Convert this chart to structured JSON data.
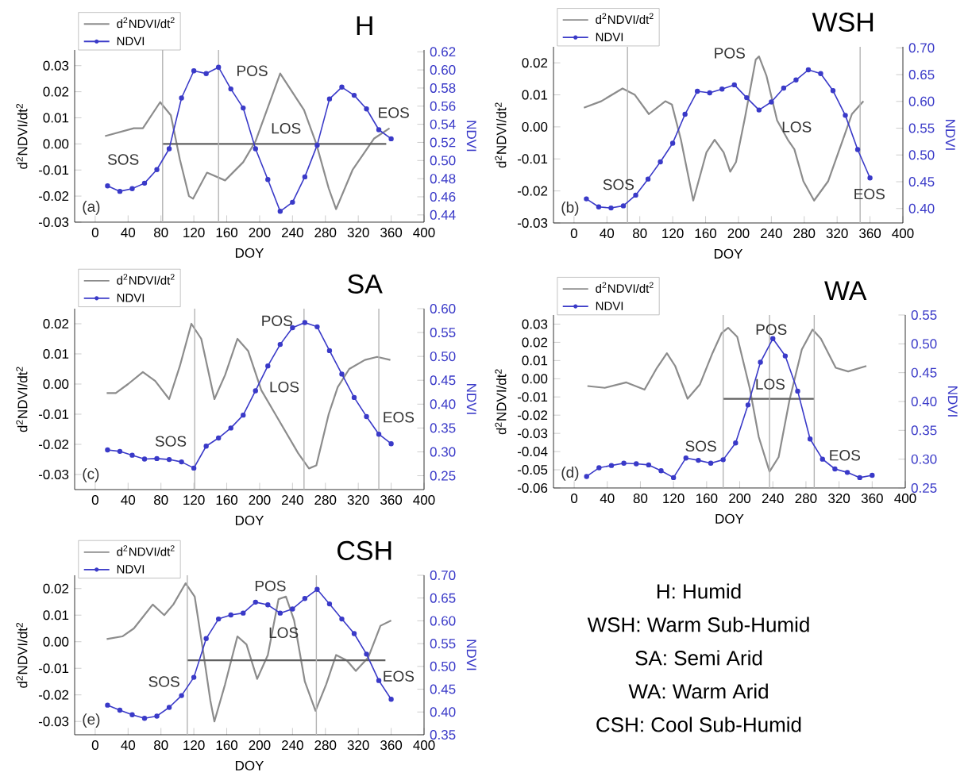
{
  "chart_data": [
    {
      "type": "line",
      "title": "H",
      "xlabel": "DOY",
      "ylabel": "d$^{2}$NDVI/dt$^{2}$",
      "y2label": "NDVI",
      "legend": "top left",
      "xlim": [
        -25,
        400
      ],
      "xticks": [
        0,
        40,
        80,
        120,
        160,
        200,
        240,
        280,
        320,
        360,
        400
      ],
      "ylim": [
        -0.03,
        0.036
      ],
      "yticks": [
        {
          "value": -0.03,
          "label": "-0.03"
        },
        {
          "value": -0.02,
          "label": "-0.02"
        },
        {
          "value": -0.01,
          "label": "-0.01"
        },
        {
          "value": 0,
          "label": "0.00"
        },
        {
          "value": 0.01,
          "label": "0.01"
        },
        {
          "value": 0.02,
          "label": "0.02"
        },
        {
          "value": 0.03,
          "label": "0.03"
        }
      ],
      "y2lim": [
        0.432,
        0.622
      ],
      "y2ticks": [
        {
          "value": 0.44,
          "label": "0.44"
        },
        {
          "value": 0.46,
          "label": "0.46"
        },
        {
          "value": 0.48,
          "label": "0.48"
        },
        {
          "value": 0.5,
          "label": "0.50"
        },
        {
          "value": 0.52,
          "label": "0.52"
        },
        {
          "value": 0.54,
          "label": "0.54"
        },
        {
          "value": 0.56,
          "label": "0.56"
        },
        {
          "value": 0.58,
          "label": "0.58"
        },
        {
          "value": 0.6,
          "label": "0.60"
        },
        {
          "value": 0.62,
          "label": "0.62"
        }
      ],
      "annotations": [
        "(a)",
        "SOS",
        "POS",
        "LOS",
        "EOS"
      ],
      "ref_lines": [
        {
          "axis": "x",
          "value": 82,
          "color": "#b4b4b4"
        },
        {
          "axis": "x",
          "value": 150,
          "color": "#b4b4b4"
        }
      ],
      "series": [
        {
          "name": "d$^{2}$NDVI/dt$^{2}$",
          "color": "#8c8c8c",
          "marker": "none",
          "x": [
            12,
            47,
            58,
            79,
            92,
            103,
            114,
            119,
            136,
            158,
            180,
            195,
            225,
            254,
            269,
            284,
            293,
            313,
            339,
            358
          ],
          "values": [
            0.003,
            0.006,
            0.006,
            0.016,
            0.011,
            -0.006,
            -0.02,
            -0.021,
            -0.011,
            -0.014,
            -0.007,
            0.001,
            0.027,
            0.013,
            0.0,
            -0.017,
            -0.025,
            -0.01,
            0.002,
            0.006
          ]
        },
        {
          "name": "NDVI",
          "color": "#3a3ac8",
          "marker": "circle",
          "axis": "y2",
          "x": [
            15,
            30,
            45,
            60,
            75,
            90,
            105,
            120,
            135,
            150,
            165,
            180,
            195,
            210,
            225,
            240,
            255,
            270,
            285,
            300,
            315,
            330,
            345,
            360
          ],
          "values": [
            0.472,
            0.466,
            0.469,
            0.475,
            0.49,
            0.513,
            0.569,
            0.599,
            0.596,
            0.603,
            0.579,
            0.558,
            0.513,
            0.479,
            0.444,
            0.454,
            0.482,
            0.517,
            0.568,
            0.581,
            0.572,
            0.557,
            0.534,
            0.524
          ]
        },
        {
          "color": "#606060",
          "marker": "none",
          "x": [
            82,
            354
          ],
          "values": [
            0,
            0
          ]
        }
      ]
    },
    {
      "type": "line",
      "title": "WSH",
      "xlabel": "DOY",
      "ylabel": "d$^{2}$NDVI/dt$^{2}$",
      "y2label": "NDVI",
      "legend": "top left",
      "xlim": [
        -25,
        400
      ],
      "xticks": [
        0,
        40,
        80,
        120,
        160,
        200,
        240,
        280,
        320,
        360,
        400
      ],
      "ylim": [
        -0.03,
        0.025
      ],
      "yticks": [
        {
          "value": -0.03,
          "label": "-0.03"
        },
        {
          "value": -0.02,
          "label": "-0.02"
        },
        {
          "value": -0.01,
          "label": "-0.01"
        },
        {
          "value": 0,
          "label": "0.00"
        },
        {
          "value": 0.01,
          "label": "0.01"
        },
        {
          "value": 0.02,
          "label": "0.02"
        }
      ],
      "y2lim": [
        0.373,
        0.702
      ],
      "y2ticks": [
        {
          "value": 0.4,
          "label": "0.40"
        },
        {
          "value": 0.45,
          "label": "0.45"
        },
        {
          "value": 0.5,
          "label": "0.50"
        },
        {
          "value": 0.55,
          "label": "0.55"
        },
        {
          "value": 0.6,
          "label": "0.60"
        },
        {
          "value": 0.65,
          "label": "0.65"
        },
        {
          "value": 0.7,
          "label": "0.70"
        }
      ],
      "annotations": [
        "(b)",
        "SOS",
        "POS",
        "LOS",
        "EOS"
      ],
      "ref_lines": [
        {
          "axis": "x",
          "value": 65,
          "color": "#b4b4b4"
        },
        {
          "axis": "x",
          "value": 348,
          "color": "#b4b4b4"
        }
      ],
      "series": [
        {
          "name": "d$^{2}$NDVI/dt$^{2}$",
          "color": "#8c8c8c",
          "marker": "none",
          "x": [
            12,
            33,
            59,
            74,
            91,
            111,
            119,
            130,
            145,
            161,
            171,
            182,
            190,
            197,
            208,
            221,
            225,
            234,
            247,
            260,
            268,
            279,
            292,
            309,
            327,
            338,
            352
          ],
          "values": [
            0.006,
            0.008,
            0.012,
            0.01,
            0.004,
            0.008,
            0.007,
            -0.004,
            -0.023,
            -0.008,
            -0.004,
            -0.008,
            -0.014,
            -0.011,
            0.003,
            0.021,
            0.022,
            0.016,
            0.002,
            -0.004,
            -0.007,
            -0.017,
            -0.023,
            -0.017,
            -0.004,
            0.004,
            0.008
          ]
        },
        {
          "name": "NDVI",
          "color": "#3a3ac8",
          "marker": "circle",
          "axis": "y2",
          "x": [
            15,
            30,
            45,
            60,
            75,
            90,
            105,
            120,
            135,
            150,
            165,
            180,
            195,
            210,
            225,
            240,
            255,
            270,
            285,
            300,
            315,
            330,
            345,
            360
          ],
          "values": [
            0.418,
            0.403,
            0.401,
            0.405,
            0.425,
            0.455,
            0.487,
            0.522,
            0.576,
            0.619,
            0.616,
            0.623,
            0.631,
            0.607,
            0.584,
            0.599,
            0.625,
            0.64,
            0.659,
            0.652,
            0.62,
            0.574,
            0.51,
            0.457
          ]
        }
      ]
    },
    {
      "type": "line",
      "title": "SA",
      "xlabel": "DOY",
      "ylabel": "d$^{2}$NDVI/dt$^{2}$",
      "y2label": "NDVI",
      "legend": "top left",
      "xlim": [
        -25,
        400
      ],
      "xticks": [
        0,
        40,
        80,
        120,
        160,
        200,
        240,
        280,
        320,
        360,
        400
      ],
      "ylim": [
        -0.035,
        0.025
      ],
      "yticks": [
        {
          "value": -0.03,
          "label": "-0.03"
        },
        {
          "value": -0.02,
          "label": "-0.02"
        },
        {
          "value": -0.01,
          "label": "-0.01"
        },
        {
          "value": 0,
          "label": "0.00"
        },
        {
          "value": 0.01,
          "label": "0.01"
        },
        {
          "value": 0.02,
          "label": "0.02"
        }
      ],
      "y2lim": [
        0.221,
        0.6
      ],
      "y2ticks": [
        {
          "value": 0.25,
          "label": "0.25"
        },
        {
          "value": 0.3,
          "label": "0.30"
        },
        {
          "value": 0.35,
          "label": "0.35"
        },
        {
          "value": 0.4,
          "label": "0.40"
        },
        {
          "value": 0.45,
          "label": "0.45"
        },
        {
          "value": 0.5,
          "label": "0.50"
        },
        {
          "value": 0.55,
          "label": "0.55"
        },
        {
          "value": 0.6,
          "label": "0.60"
        }
      ],
      "annotations": [
        "(c)",
        "SOS",
        "POS",
        "LOS",
        "EOS"
      ],
      "ref_lines": [
        {
          "axis": "x",
          "value": 121,
          "color": "#b4b4b4"
        },
        {
          "axis": "x",
          "value": 254,
          "color": "#b4b4b4"
        },
        {
          "axis": "x",
          "value": 345,
          "color": "#b4b4b4"
        }
      ],
      "series": [
        {
          "name": "d$^{2}$NDVI/dt$^{2}$",
          "color": "#8c8c8c",
          "marker": "none",
          "x": [
            14,
            25,
            40,
            58,
            73,
            90,
            103,
            117,
            129,
            145,
            158,
            173,
            186,
            202,
            217,
            232,
            247,
            260,
            269,
            284,
            295,
            309,
            328,
            343,
            359
          ],
          "values": [
            -0.003,
            -0.003,
            0.0,
            0.004,
            0.001,
            -0.005,
            0.006,
            0.02,
            0.015,
            -0.005,
            0.003,
            0.015,
            0.011,
            -0.002,
            -0.009,
            -0.016,
            -0.023,
            -0.028,
            -0.027,
            -0.01,
            -0.001,
            0.005,
            0.008,
            0.009,
            0.008
          ]
        },
        {
          "name": "NDVI",
          "color": "#3a3ac8",
          "marker": "circle",
          "axis": "y2",
          "x": [
            15,
            30,
            45,
            60,
            75,
            90,
            105,
            120,
            135,
            150,
            165,
            180,
            195,
            210,
            225,
            240,
            255,
            270,
            285,
            300,
            315,
            330,
            345,
            360
          ],
          "values": [
            0.304,
            0.301,
            0.293,
            0.285,
            0.286,
            0.284,
            0.279,
            0.266,
            0.312,
            0.329,
            0.35,
            0.377,
            0.428,
            0.48,
            0.525,
            0.56,
            0.571,
            0.562,
            0.512,
            0.463,
            0.414,
            0.374,
            0.337,
            0.317
          ]
        }
      ]
    },
    {
      "type": "line",
      "title": "WA",
      "xlabel": "DOY",
      "ylabel": "d$^{2}$NDVI/dt$^{2}$",
      "y2label": "NDVI",
      "legend": "top left",
      "xlim": [
        -25,
        400
      ],
      "xticks": [
        0,
        40,
        80,
        120,
        160,
        200,
        240,
        280,
        320,
        360,
        400
      ],
      "ylim": [
        -0.06,
        0.035
      ],
      "yticks": [
        {
          "value": -0.06,
          "label": "-0.06"
        },
        {
          "value": -0.05,
          "label": "-0.05"
        },
        {
          "value": -0.04,
          "label": "-0.04"
        },
        {
          "value": -0.03,
          "label": "-0.03"
        },
        {
          "value": -0.02,
          "label": "-0.02"
        },
        {
          "value": -0.01,
          "label": "-0.01"
        },
        {
          "value": 0,
          "label": "0.00"
        },
        {
          "value": 0.01,
          "label": "0.01"
        },
        {
          "value": 0.02,
          "label": "0.02"
        },
        {
          "value": 0.03,
          "label": "0.03"
        }
      ],
      "y2lim": [
        0.25,
        0.55
      ],
      "y2ticks": [
        {
          "value": 0.25,
          "label": "0.25"
        },
        {
          "value": 0.3,
          "label": "0.30"
        },
        {
          "value": 0.35,
          "label": "0.35"
        },
        {
          "value": 0.4,
          "label": "0.40"
        },
        {
          "value": 0.45,
          "label": "0.45"
        },
        {
          "value": 0.5,
          "label": "0.50"
        },
        {
          "value": 0.55,
          "label": "0.55"
        }
      ],
      "annotations": [
        "(d)",
        "SOS",
        "POS",
        "LOS",
        "EOS"
      ],
      "ref_lines": [
        {
          "axis": "x",
          "value": 180,
          "color": "#b4b4b4"
        },
        {
          "axis": "x",
          "value": 236,
          "color": "#b4b4b4"
        },
        {
          "axis": "x",
          "value": 290,
          "color": "#b4b4b4"
        }
      ],
      "series": [
        {
          "name": "d$^{2}$NDVI/dt$^{2}$",
          "color": "#8c8c8c",
          "marker": "none",
          "x": [
            16,
            37,
            63,
            85,
            100,
            112,
            122,
            137,
            152,
            167,
            178,
            186,
            197,
            212,
            223,
            236,
            247,
            260,
            275,
            288,
            298,
            316,
            331,
            353
          ],
          "values": [
            -0.004,
            -0.005,
            -0.002,
            -0.006,
            0.006,
            0.014,
            0.007,
            -0.011,
            -0.003,
            0.014,
            0.025,
            0.028,
            0.023,
            -0.005,
            -0.032,
            -0.051,
            -0.043,
            -0.012,
            0.016,
            0.027,
            0.022,
            0.006,
            0.004,
            0.007
          ]
        },
        {
          "name": "NDVI",
          "color": "#3a3ac8",
          "marker": "circle",
          "axis": "y2",
          "x": [
            15,
            30,
            45,
            60,
            75,
            90,
            105,
            120,
            135,
            150,
            165,
            180,
            195,
            210,
            225,
            240,
            255,
            270,
            285,
            300,
            315,
            330,
            345,
            360
          ],
          "values": [
            0.27,
            0.285,
            0.289,
            0.293,
            0.292,
            0.29,
            0.28,
            0.268,
            0.302,
            0.298,
            0.293,
            0.299,
            0.328,
            0.394,
            0.468,
            0.509,
            0.479,
            0.418,
            0.335,
            0.3,
            0.283,
            0.277,
            0.268,
            0.272
          ]
        },
        {
          "color": "#606060",
          "marker": "none",
          "x": [
            180,
            290
          ],
          "values": [
            -0.011,
            -0.011
          ]
        }
      ]
    },
    {
      "type": "line",
      "title": "CSH",
      "xlabel": "DOY",
      "ylabel": "d$^{2}$NDVI/dt$^{2}$",
      "y2label": "NDVI",
      "legend": "top left",
      "xlim": [
        -25,
        400
      ],
      "xticks": [
        0,
        40,
        80,
        120,
        160,
        200,
        240,
        280,
        320,
        360,
        400
      ],
      "ylim": [
        -0.035,
        0.025
      ],
      "yticks": [
        {
          "value": -0.03,
          "label": "-0.03"
        },
        {
          "value": -0.02,
          "label": "-0.02"
        },
        {
          "value": -0.01,
          "label": "-0.01"
        },
        {
          "value": 0,
          "label": "0.00"
        },
        {
          "value": 0.01,
          "label": "0.01"
        },
        {
          "value": 0.02,
          "label": "0.02"
        }
      ],
      "y2lim": [
        0.35,
        0.7
      ],
      "y2ticks": [
        {
          "value": 0.35,
          "label": "0.35"
        },
        {
          "value": 0.4,
          "label": "0.40"
        },
        {
          "value": 0.45,
          "label": "0.45"
        },
        {
          "value": 0.5,
          "label": "0.50"
        },
        {
          "value": 0.55,
          "label": "0.55"
        },
        {
          "value": 0.6,
          "label": "0.60"
        },
        {
          "value": 0.65,
          "label": "0.65"
        },
        {
          "value": 0.7,
          "label": "0.70"
        }
      ],
      "annotations": [
        "(e)",
        "SOS",
        "POS",
        "LOS",
        "EOS"
      ],
      "ref_lines": [
        {
          "axis": "x",
          "value": 112,
          "color": "#b4b4b4"
        },
        {
          "axis": "x",
          "value": 269,
          "color": "#b4b4b4"
        }
      ],
      "series": [
        {
          "name": "d$^{2}$NDVI/dt$^{2}$",
          "color": "#8c8c8c",
          "marker": "none",
          "x": [
            14,
            33,
            47,
            70,
            84,
            95,
            110,
            121,
            131,
            140,
            145,
            158,
            173,
            184,
            197,
            210,
            223,
            232,
            242,
            255,
            268,
            281,
            293,
            306,
            317,
            332,
            347,
            360
          ],
          "values": [
            0.001,
            0.002,
            0.005,
            0.014,
            0.01,
            0.014,
            0.022,
            0.017,
            -0.003,
            -0.022,
            -0.03,
            -0.016,
            0.002,
            -0.001,
            -0.014,
            -0.005,
            0.016,
            0.017,
            0.008,
            -0.015,
            -0.026,
            -0.016,
            -0.005,
            -0.007,
            -0.011,
            -0.006,
            0.006,
            0.008
          ]
        },
        {
          "name": "NDVI",
          "color": "#3a3ac8",
          "marker": "circle",
          "axis": "y2",
          "x": [
            15,
            30,
            45,
            60,
            75,
            90,
            105,
            120,
            135,
            150,
            165,
            180,
            195,
            210,
            225,
            240,
            255,
            270,
            285,
            300,
            315,
            330,
            345,
            360
          ],
          "values": [
            0.415,
            0.404,
            0.394,
            0.386,
            0.391,
            0.41,
            0.436,
            0.476,
            0.561,
            0.604,
            0.613,
            0.617,
            0.641,
            0.635,
            0.617,
            0.626,
            0.649,
            0.669,
            0.637,
            0.604,
            0.572,
            0.527,
            0.469,
            0.428
          ]
        },
        {
          "color": "#606060",
          "marker": "none",
          "x": [
            112,
            353
          ],
          "values": [
            -0.007,
            -0.007
          ]
        }
      ]
    },
    {
      "type": "other",
      "annotations": [
        "H: Humid",
        "WSH: Warm Sub-Humid",
        "SA: Semi Arid",
        "WA: Warm Arid",
        "CSH: Cool Sub-Humid"
      ]
    }
  ]
}
